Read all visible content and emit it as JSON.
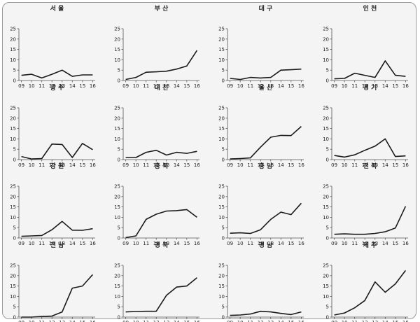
{
  "chart_data": [
    {
      "type": "line",
      "title": "서 울",
      "x": [
        "09",
        "10",
        "11",
        "12",
        "13",
        "14",
        "15",
        "16"
      ],
      "values": [
        2.5,
        3.0,
        1.2,
        3.0,
        5.0,
        2.0,
        2.7,
        2.7
      ],
      "ylim": [
        0,
        25
      ],
      "yticks": [
        0,
        5,
        10,
        15,
        20,
        25
      ]
    },
    {
      "type": "line",
      "title": "부 산",
      "x": [
        "09",
        "10",
        "11",
        "12",
        "13",
        "14",
        "15",
        "16"
      ],
      "values": [
        0.5,
        1.5,
        4.0,
        4.2,
        4.5,
        5.5,
        7.0,
        14.5
      ],
      "ylim": [
        0,
        25
      ],
      "yticks": [
        0,
        5,
        10,
        15,
        20,
        25
      ]
    },
    {
      "type": "line",
      "title": "대 구",
      "x": [
        "09",
        "10",
        "11",
        "12",
        "13",
        "14",
        "15",
        "16"
      ],
      "values": [
        1.0,
        0.5,
        1.5,
        1.2,
        1.5,
        5.0,
        5.2,
        5.5
      ],
      "ylim": [
        0,
        25
      ],
      "yticks": [
        0,
        5,
        10,
        15,
        20,
        25
      ]
    },
    {
      "type": "line",
      "title": "인 천",
      "x": [
        "09",
        "10",
        "11",
        "12",
        "13",
        "14",
        "15",
        "16"
      ],
      "values": [
        0.8,
        1.0,
        3.5,
        2.5,
        1.5,
        9.5,
        2.5,
        2.0
      ],
      "ylim": [
        0,
        25
      ],
      "yticks": [
        0,
        5,
        10,
        15,
        20,
        25
      ]
    },
    {
      "type": "line",
      "title": "광 주",
      "x": [
        "09",
        "10",
        "11",
        "12",
        "13",
        "14",
        "15",
        "16"
      ],
      "values": [
        1.5,
        0.3,
        0.5,
        7.5,
        7.3,
        1.0,
        7.8,
        4.8
      ],
      "ylim": [
        0,
        25
      ],
      "yticks": [
        0,
        5,
        10,
        15,
        20,
        25
      ]
    },
    {
      "type": "line",
      "title": "대 전",
      "x": [
        "09",
        "10",
        "11",
        "12",
        "13",
        "14",
        "15",
        "16"
      ],
      "values": [
        1.0,
        1.0,
        3.5,
        4.5,
        2.2,
        3.5,
        3.0,
        4.0
      ],
      "ylim": [
        0,
        25
      ],
      "yticks": [
        0,
        5,
        10,
        15,
        20,
        25
      ]
    },
    {
      "type": "line",
      "title": "울 산",
      "x": [
        "09",
        "10",
        "11",
        "12",
        "13",
        "14",
        "15",
        "16"
      ],
      "values": [
        0.3,
        0.5,
        0.8,
        6.0,
        10.8,
        11.7,
        11.6,
        16.0
      ],
      "ylim": [
        0,
        25
      ],
      "yticks": [
        0,
        5,
        10,
        15,
        20,
        25
      ]
    },
    {
      "type": "line",
      "title": "경 기",
      "x": [
        "09",
        "10",
        "11",
        "12",
        "13",
        "14",
        "15",
        "16"
      ],
      "values": [
        2.0,
        1.2,
        2.3,
        4.5,
        6.5,
        10.0,
        1.5,
        1.8
      ],
      "ylim": [
        0,
        25
      ],
      "yticks": [
        0,
        5,
        10,
        15,
        20,
        25
      ]
    },
    {
      "type": "line",
      "title": "강 원",
      "x": [
        "09",
        "10",
        "11",
        "12",
        "13",
        "14",
        "15",
        "16"
      ],
      "values": [
        0.8,
        1.0,
        1.2,
        4.0,
        8.0,
        3.8,
        3.7,
        4.5
      ],
      "ylim": [
        0,
        25
      ],
      "yticks": [
        0,
        5,
        10,
        15,
        20,
        25
      ]
    },
    {
      "type": "line",
      "title": "충 북",
      "x": [
        "09",
        "10",
        "11",
        "12",
        "13",
        "14",
        "15",
        "16"
      ],
      "values": [
        0.2,
        1.0,
        9.0,
        11.5,
        13.0,
        13.2,
        13.7,
        10.0
      ],
      "ylim": [
        0,
        25
      ],
      "yticks": [
        0,
        5,
        10,
        15,
        20,
        25
      ]
    },
    {
      "type": "line",
      "title": "충 남",
      "x": [
        "09",
        "10",
        "11",
        "12",
        "13",
        "14",
        "15",
        "16"
      ],
      "values": [
        2.3,
        2.5,
        2.2,
        4.0,
        9.0,
        12.5,
        11.3,
        16.8
      ],
      "ylim": [
        0,
        25
      ],
      "yticks": [
        0,
        5,
        10,
        15,
        20,
        25
      ]
    },
    {
      "type": "line",
      "title": "전 북",
      "x": [
        "09",
        "10",
        "11",
        "12",
        "13",
        "14",
        "15",
        "16"
      ],
      "values": [
        1.8,
        2.0,
        1.8,
        1.8,
        2.2,
        3.0,
        4.8,
        15.3
      ],
      "ylim": [
        0,
        25
      ],
      "yticks": [
        0,
        5,
        10,
        15,
        20,
        25
      ]
    },
    {
      "type": "line",
      "title": "전 남",
      "x": [
        "09",
        "10",
        "11",
        "12",
        "13",
        "14",
        "15",
        "16"
      ],
      "values": [
        0,
        0,
        0.3,
        0.5,
        2.5,
        14.0,
        15.0,
        20.5
      ],
      "ylim": [
        0,
        25
      ],
      "yticks": [
        0,
        5,
        10,
        15,
        20,
        25
      ]
    },
    {
      "type": "line",
      "title": "경 북",
      "x": [
        "09",
        "10",
        "11",
        "12",
        "13",
        "14",
        "15",
        "16"
      ],
      "values": [
        2.5,
        2.7,
        2.8,
        2.8,
        10.5,
        14.5,
        15.0,
        19.0
      ],
      "ylim": [
        0,
        25
      ],
      "yticks": [
        0,
        5,
        10,
        15,
        20,
        25
      ]
    },
    {
      "type": "line",
      "title": "경 남",
      "x": [
        "09",
        "10",
        "11",
        "12",
        "13",
        "14",
        "15",
        "16"
      ],
      "values": [
        0.8,
        1.0,
        1.5,
        2.8,
        2.5,
        1.8,
        1.2,
        2.5
      ],
      "ylim": [
        0,
        25
      ],
      "yticks": [
        0,
        5,
        10,
        15,
        20,
        25
      ]
    },
    {
      "type": "line",
      "title": "제 주",
      "x": [
        "09",
        "10",
        "11",
        "12",
        "13",
        "14",
        "15",
        "16"
      ],
      "values": [
        1.0,
        2.0,
        4.5,
        8.0,
        17.0,
        12.0,
        16.0,
        22.5
      ],
      "ylim": [
        0,
        25
      ],
      "yticks": [
        0,
        5,
        10,
        15,
        20,
        25
      ]
    }
  ]
}
